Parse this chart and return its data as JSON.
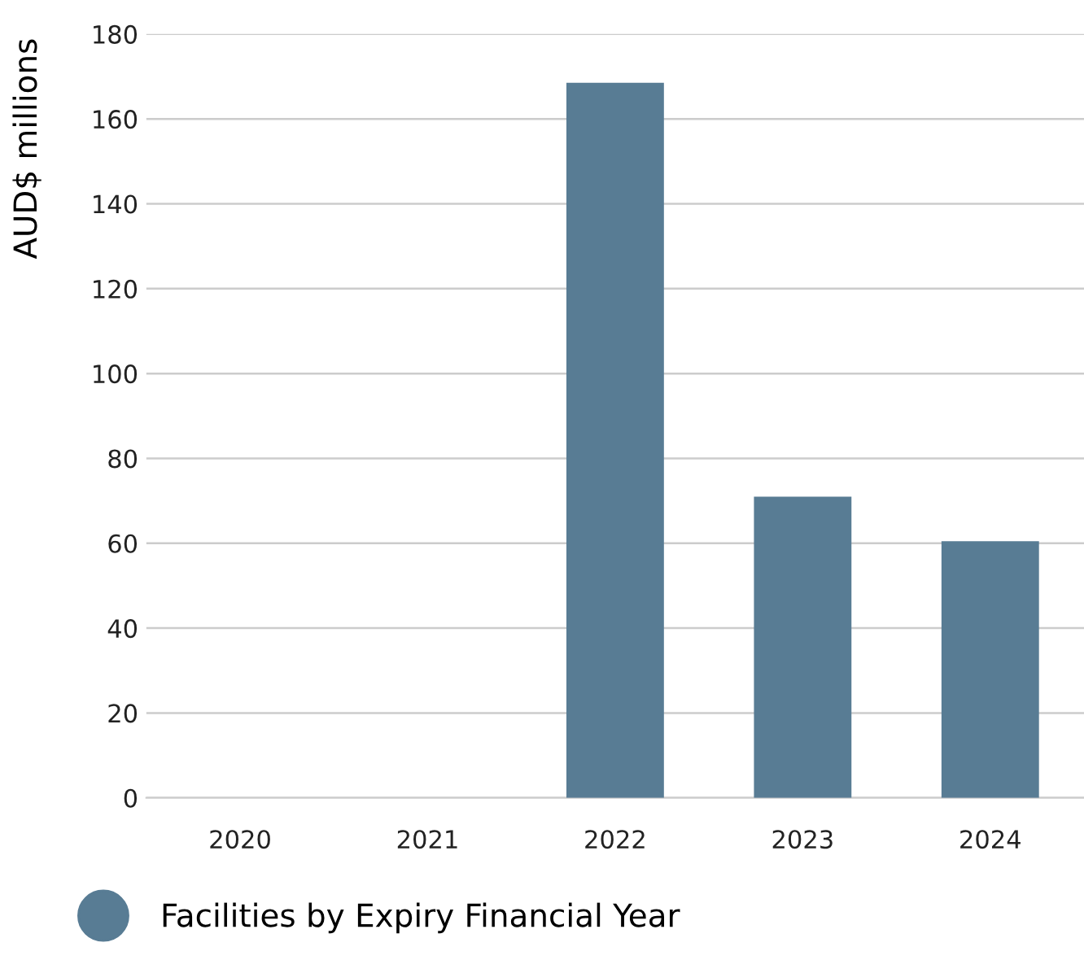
{
  "chart_data": {
    "type": "bar",
    "ylabel": "AUD$ millions",
    "categories": [
      "2020",
      "2021",
      "2022",
      "2023",
      "2024"
    ],
    "series": [
      {
        "name": "Facilities by Expiry Financial Year",
        "color": "#587c94",
        "values": [
          0,
          0,
          168.5,
          71,
          60.5
        ]
      }
    ],
    "ylim": [
      0,
      180
    ],
    "yticks": [
      0,
      20,
      40,
      60,
      80,
      100,
      120,
      140,
      160,
      180
    ],
    "grid": "y",
    "legend": "bottom left"
  }
}
